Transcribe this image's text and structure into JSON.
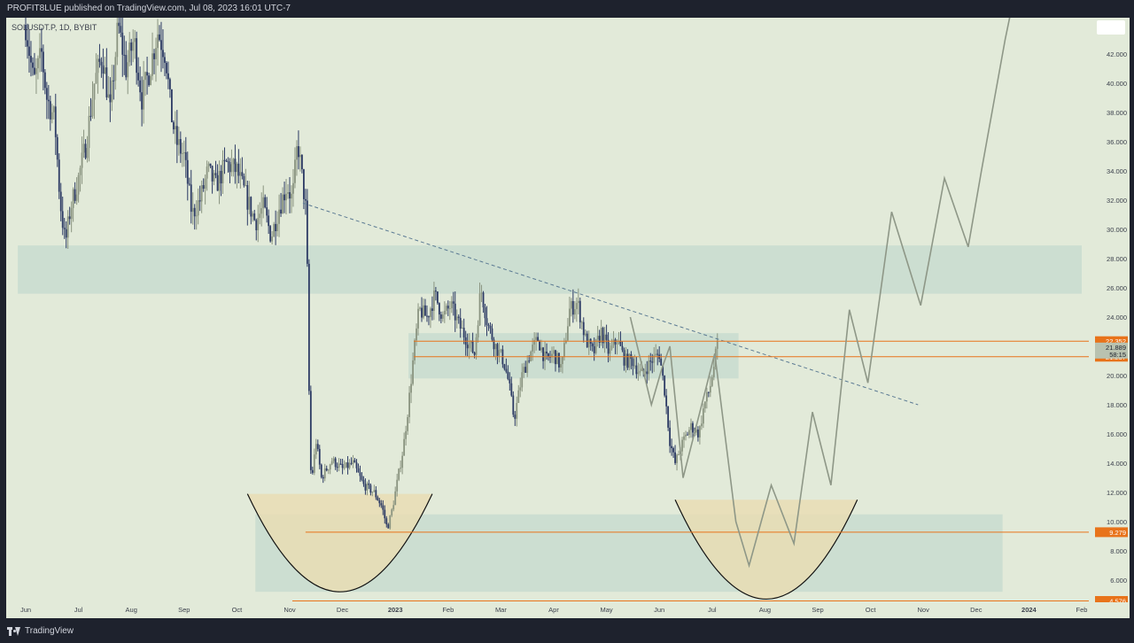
{
  "header": {
    "text": "PROFIT8LUE published on TradingView.com, Jul 08, 2023 16:01 UTC-7"
  },
  "chart_header": {
    "symbol": "SOLUSDT.P, 1D, BYBIT"
  },
  "footer": {
    "brand": "TradingView"
  },
  "colors": {
    "background": "#e2ead9",
    "candle_up": "#8a9480",
    "candle_down": "#2c3a64",
    "zone": "#c8dccf",
    "cup": "#eadcb2",
    "level_line": "#e8731a",
    "projection": "#8e9787",
    "trendline": "#5b7a93"
  },
  "chart_data": {
    "type": "candlestick",
    "title": "SOLUSDT.P, 1D, BYBIT",
    "ylim": [
      4.0,
      44.4
    ],
    "y_ticks": [
      "42.000",
      "40.000",
      "38.000",
      "36.000",
      "34.000",
      "32.000",
      "30.000",
      "28.000",
      "26.000",
      "24.000",
      "22.000",
      "20.000",
      "18.000",
      "16.000",
      "14.000",
      "12.000",
      "10.000",
      "8.000",
      "6.000"
    ],
    "x_ticks": [
      {
        "label": "Jun",
        "t": 0.0
      },
      {
        "label": "Jul",
        "t": 1.0
      },
      {
        "label": "Aug",
        "t": 2.0
      },
      {
        "label": "Sep",
        "t": 3.0
      },
      {
        "label": "Oct",
        "t": 4.0
      },
      {
        "label": "Nov",
        "t": 5.0
      },
      {
        "label": "Dec",
        "t": 6.0
      },
      {
        "label": "2023",
        "t": 7.0
      },
      {
        "label": "Feb",
        "t": 8.0
      },
      {
        "label": "Mar",
        "t": 9.0
      },
      {
        "label": "Apr",
        "t": 10.0
      },
      {
        "label": "May",
        "t": 11.0
      },
      {
        "label": "Jun",
        "t": 12.0
      },
      {
        "label": "Jul",
        "t": 13.0
      },
      {
        "label": "Aug",
        "t": 14.0
      },
      {
        "label": "Sep",
        "t": 15.0
      },
      {
        "label": "Oct",
        "t": 16.0
      },
      {
        "label": "Nov",
        "t": 17.0
      },
      {
        "label": "Dec",
        "t": 18.0
      },
      {
        "label": "2024",
        "t": 19.0
      },
      {
        "label": "Feb",
        "t": 20.0
      }
    ],
    "price_path": [
      [
        0.0,
        44.0
      ],
      [
        0.15,
        40.0
      ],
      [
        0.3,
        42.0
      ],
      [
        0.4,
        39.0
      ],
      [
        0.55,
        37.5
      ],
      [
        0.65,
        32.0
      ],
      [
        0.75,
        29.0
      ],
      [
        0.85,
        31.5
      ],
      [
        1.0,
        33.5
      ],
      [
        1.15,
        36.0
      ],
      [
        1.3,
        40.0
      ],
      [
        1.45,
        42.0
      ],
      [
        1.6,
        38.0
      ],
      [
        1.75,
        44.0
      ],
      [
        1.9,
        41.0
      ],
      [
        2.05,
        43.0
      ],
      [
        2.2,
        39.0
      ],
      [
        2.35,
        41.0
      ],
      [
        2.5,
        43.5
      ],
      [
        2.65,
        42.0
      ],
      [
        2.75,
        38.0
      ],
      [
        2.85,
        36.0
      ],
      [
        3.0,
        35.0
      ],
      [
        3.15,
        31.0
      ],
      [
        3.3,
        32.0
      ],
      [
        3.45,
        34.0
      ],
      [
        3.6,
        33.0
      ],
      [
        3.8,
        34.5
      ],
      [
        4.0,
        34.0
      ],
      [
        4.15,
        32.5
      ],
      [
        4.35,
        30.5
      ],
      [
        4.5,
        31.5
      ],
      [
        4.65,
        29.5
      ],
      [
        4.8,
        31.5
      ],
      [
        4.95,
        33.0
      ],
      [
        5.05,
        32.0
      ],
      [
        5.15,
        36.0
      ],
      [
        5.22,
        34.0
      ],
      [
        5.3,
        31.5
      ],
      [
        5.35,
        25.0
      ],
      [
        5.38,
        14.0
      ],
      [
        5.42,
        13.0
      ],
      [
        5.5,
        15.5
      ],
      [
        5.6,
        13.0
      ],
      [
        5.8,
        14.2
      ],
      [
        6.0,
        13.6
      ],
      [
        6.2,
        14.0
      ],
      [
        6.4,
        12.5
      ],
      [
        6.6,
        12.0
      ],
      [
        6.75,
        11.0
      ],
      [
        6.85,
        9.5
      ],
      [
        6.95,
        11.0
      ],
      [
        7.05,
        13.0
      ],
      [
        7.15,
        15.0
      ],
      [
        7.25,
        18.0
      ],
      [
        7.35,
        21.5
      ],
      [
        7.45,
        24.5
      ],
      [
        7.6,
        24.0
      ],
      [
        7.75,
        25.5
      ],
      [
        7.9,
        24.0
      ],
      [
        8.05,
        24.8
      ],
      [
        8.2,
        23.5
      ],
      [
        8.35,
        22.5
      ],
      [
        8.5,
        21.5
      ],
      [
        8.62,
        26.0
      ],
      [
        8.75,
        23.5
      ],
      [
        8.9,
        22.0
      ],
      [
        9.05,
        21.0
      ],
      [
        9.15,
        19.5
      ],
      [
        9.25,
        17.0
      ],
      [
        9.4,
        20.0
      ],
      [
        9.55,
        21.5
      ],
      [
        9.7,
        22.5
      ],
      [
        9.85,
        21.0
      ],
      [
        10.0,
        21.5
      ],
      [
        10.15,
        20.5
      ],
      [
        10.3,
        24.5
      ],
      [
        10.45,
        25.0
      ],
      [
        10.6,
        22.5
      ],
      [
        10.75,
        21.5
      ],
      [
        10.9,
        23.0
      ],
      [
        11.05,
        21.5
      ],
      [
        11.2,
        22.5
      ],
      [
        11.35,
        21.0
      ],
      [
        11.5,
        21.0
      ],
      [
        11.65,
        20.0
      ],
      [
        11.85,
        21.0
      ],
      [
        12.0,
        21.5
      ],
      [
        12.1,
        19.0
      ],
      [
        12.2,
        15.5
      ],
      [
        12.3,
        14.0
      ],
      [
        12.45,
        15.5
      ],
      [
        12.6,
        16.5
      ],
      [
        12.75,
        16.0
      ],
      [
        12.85,
        18.0
      ],
      [
        12.95,
        19.0
      ],
      [
        13.05,
        21.0
      ],
      [
        13.1,
        22.0
      ]
    ],
    "candle_days_per_month": 30,
    "zones": [
      {
        "t0": -0.15,
        "t1": 20.0,
        "y0": 25.6,
        "y1": 28.9
      },
      {
        "t0": 7.25,
        "t1": 13.5,
        "y0": 19.8,
        "y1": 22.9
      },
      {
        "t0": 4.35,
        "t1": 18.5,
        "y0": 5.2,
        "y1": 10.5
      }
    ],
    "cups": [
      {
        "t0": 4.2,
        "t1": 7.7,
        "y_top": 11.9,
        "y_bottom": 5.2
      },
      {
        "t0": 12.3,
        "t1": 15.75,
        "y_top": 11.5,
        "y_bottom": 4.7
      }
    ],
    "horizontal_levels": [
      {
        "price": 22.352,
        "label": "22.352",
        "t_start": 7.35
      },
      {
        "price": 21.287,
        "label": "21.287",
        "t_start": 7.35
      },
      {
        "price": 9.279,
        "label": "9.279",
        "t_start": 5.3
      },
      {
        "price": 4.576,
        "label": "4.576",
        "t_start": 5.05
      }
    ],
    "current_price": {
      "price": 21.889,
      "countdown": "58:15"
    },
    "trendline": {
      "t0": 5.25,
      "y0": 31.8,
      "t1": 16.9,
      "y1": 18.0
    },
    "projection_path": [
      [
        11.45,
        24.0
      ],
      [
        11.85,
        18.0
      ],
      [
        12.05,
        20.5
      ],
      [
        12.2,
        22.0
      ],
      [
        12.45,
        13.0
      ],
      [
        13.05,
        21.5
      ],
      [
        13.45,
        10.0
      ],
      [
        13.7,
        7.0
      ],
      [
        14.12,
        12.5
      ],
      [
        14.55,
        8.5
      ],
      [
        14.9,
        17.5
      ],
      [
        15.25,
        12.5
      ],
      [
        15.6,
        24.5
      ],
      [
        15.95,
        19.5
      ],
      [
        16.4,
        31.2
      ],
      [
        16.95,
        24.8
      ],
      [
        17.4,
        33.5
      ],
      [
        17.85,
        28.8
      ],
      [
        18.1,
        34.0
      ],
      [
        18.55,
        43.0
      ],
      [
        18.95,
        50.0
      ]
    ]
  }
}
